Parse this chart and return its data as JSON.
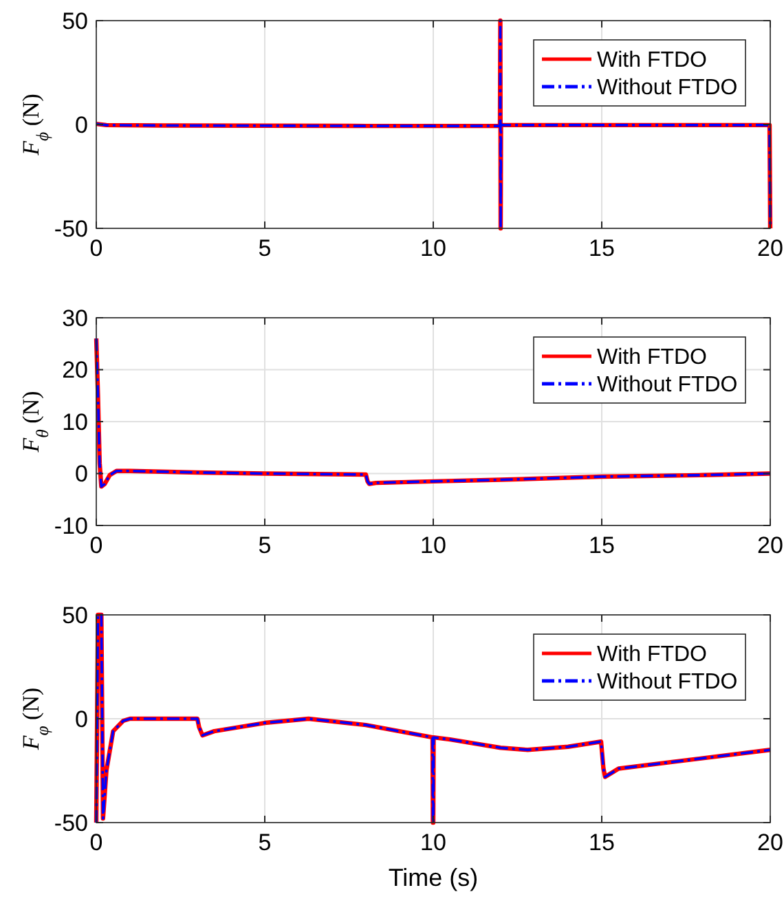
{
  "chart_data": [
    {
      "type": "line",
      "ylabel": "F$_{ϕ}$ (N)",
      "xlim": [
        0,
        20
      ],
      "xticks": [
        0,
        5,
        10,
        15,
        20
      ],
      "ylim": [
        -50,
        50
      ],
      "yticks": [
        -50,
        0,
        50
      ],
      "grid": true,
      "legend": "top right",
      "x": [
        0,
        0.3,
        2,
        5,
        8,
        11.98,
        11.99,
        12.0,
        12.01,
        12.05,
        15,
        19.98,
        20
      ],
      "series": [
        {
          "name": "With FTDO",
          "color": "#ff0000",
          "line_style": "solid",
          "values": [
            0.3,
            -0.3,
            -0.5,
            -0.6,
            -0.7,
            -0.7,
            50,
            -50,
            0,
            -0.3,
            -0.3,
            -0.3,
            -50
          ]
        },
        {
          "name": "Without FTDO",
          "color": "#0000ff",
          "line_style": "dashed",
          "values": [
            0.3,
            -0.3,
            -0.5,
            -0.6,
            -0.7,
            -0.7,
            50,
            -50,
            0,
            -0.3,
            -0.3,
            -0.3,
            -50
          ]
        }
      ]
    },
    {
      "type": "line",
      "ylabel": "F$_{θ}$ (N)",
      "xlim": [
        0,
        20
      ],
      "xticks": [
        0,
        5,
        10,
        15,
        20
      ],
      "ylim": [
        -10,
        30
      ],
      "yticks": [
        -10,
        0,
        10,
        20,
        30
      ],
      "grid": true,
      "legend": "top right",
      "x": [
        0,
        0.05,
        0.1,
        0.15,
        0.25,
        0.4,
        0.6,
        1,
        3,
        5,
        8,
        8.05,
        8.1,
        8.3,
        10,
        12,
        15,
        18,
        20
      ],
      "series": [
        {
          "name": "With FTDO",
          "color": "#ff0000",
          "line_style": "solid",
          "values": [
            26,
            15,
            2,
            -2.5,
            -2,
            -0.3,
            0.5,
            0.5,
            0.2,
            0,
            -0.2,
            -1.5,
            -2,
            -1.8,
            -1.5,
            -1.2,
            -0.6,
            -0.3,
            0
          ]
        },
        {
          "name": "Without FTDO",
          "color": "#0000ff",
          "line_style": "dashed",
          "values": [
            26,
            15,
            2,
            -2.5,
            -2,
            -0.3,
            0.5,
            0.5,
            0.2,
            0,
            -0.2,
            -1.5,
            -2,
            -1.8,
            -1.5,
            -1.2,
            -0.6,
            -0.3,
            0
          ]
        }
      ]
    },
    {
      "type": "line",
      "xlabel": "Time (s)",
      "ylabel": "F$_{φ}$ (N)",
      "xlim": [
        0,
        20
      ],
      "xticks": [
        0,
        5,
        10,
        15,
        20
      ],
      "ylim": [
        -50,
        50
      ],
      "yticks": [
        -50,
        0,
        50
      ],
      "grid": true,
      "legend": "top right",
      "x": [
        0,
        0.05,
        0.15,
        0.2,
        0.3,
        0.5,
        0.8,
        1,
        3,
        3.05,
        3.15,
        3.5,
        5,
        6.3,
        8,
        9.98,
        9.99,
        10.0,
        10.01,
        10.5,
        12,
        12.8,
        14,
        14.98,
        15.05,
        15.1,
        15.5,
        17,
        20
      ],
      "series": [
        {
          "name": "With FTDO",
          "color": "#ff0000",
          "line_style": "solid",
          "values": [
            -50,
            50,
            50,
            -48,
            -25,
            -6,
            -1,
            0,
            0,
            -4,
            -8,
            -6,
            -2,
            0,
            -3,
            -9,
            -50,
            -50,
            -9,
            -10,
            -14,
            -15,
            -13.5,
            -11,
            -24,
            -28,
            -24,
            -21,
            -15
          ]
        },
        {
          "name": "Without FTDO",
          "color": "#0000ff",
          "line_style": "dashed",
          "values": [
            -50,
            50,
            50,
            -48,
            -25,
            -6,
            -1,
            0,
            0,
            -4,
            -8,
            -6,
            -2,
            0,
            -3,
            -9,
            -50,
            -50,
            -9,
            -10,
            -14,
            -15,
            -13.5,
            -11,
            -24,
            -28,
            -24,
            -21,
            -15
          ]
        }
      ]
    }
  ]
}
